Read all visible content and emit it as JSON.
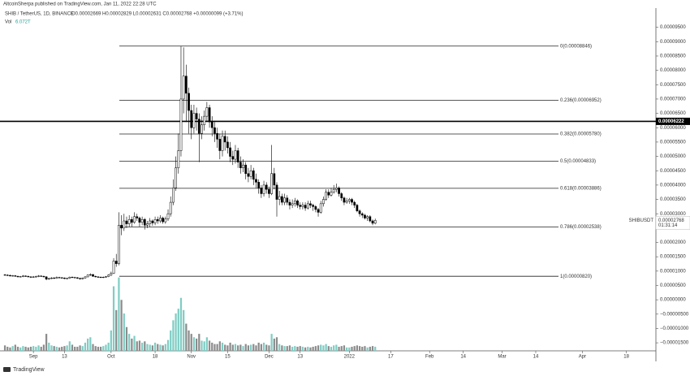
{
  "header": {
    "publisher": "AltcoinSherpa published on TradingView.com, Jan 11, 2022 22:28 UTC",
    "symbol": "SHIB / TetherUS, 1D, BINANCE",
    "ohlc": "O0.00002669 H0.00002829 L0.00002631 C0.00002768 +0.00000099 (+3.71%)",
    "volume_label": "Vol",
    "volume_value": "6.072T",
    "footer": "TradingView"
  },
  "chart_data": {
    "type": "candlestick",
    "open": [
      8.7e-06,
      8.6e-06,
      8.5e-06,
      8.3e-06,
      8.4e-06,
      8.2e-06,
      8e-06,
      8.1e-06,
      8.3e-06,
      8.2e-06,
      8e-06,
      7.9e-06,
      8e-06,
      8.1e-06,
      8.3e-06,
      8.2e-06,
      8e-06,
      7.2e-06,
      7.4e-06,
      7.6e-06,
      7.5e-06,
      7.8e-06,
      7.7e-06,
      7.6e-06,
      7.4e-06,
      7.5e-06,
      7.9e-06,
      7.8e-06,
      7.7e-06,
      7.5e-06,
      7.3e-06,
      7.6e-06,
      8e-06,
      8.6e-06,
      8.8e-06,
      8.2e-06,
      8e-06,
      7.9e-06,
      7.8e-06,
      7.9e-06,
      8.1e-06,
      8.6e-06,
      9.2e-06,
      1.35e-05,
      1.26e-05,
      2.6e-05,
      2.5e-05,
      2.75e-05,
      2.65e-05,
      2.8e-05,
      2.7e-05,
      2.9e-05,
      2.85e-05,
      2.7e-05,
      2.8e-05,
      2.6e-05,
      2.65e-05,
      2.75e-05,
      2.68e-05,
      2.8e-05,
      2.75e-05,
      2.85e-05,
      2.72e-05,
      2.82e-05,
      3e-05,
      3.4e-05,
      3.9e-05,
      4.6e-05,
      5.2e-05,
      7e-05,
      7.8e-05,
      7.2e-05,
      6.6e-05,
      6e-05,
      6.5e-05,
      6.3e-05,
      5.8e-05,
      6.1e-05,
      6.4e-05,
      6.7e-05,
      6.2e-05,
      6e-05,
      5.8e-05,
      5.6e-05,
      5.2e-05,
      5.7e-05,
      5.5e-05,
      5.3e-05,
      5e-05,
      4.9e-05,
      5.2e-05,
      4.8e-05,
      4.6e-05,
      4.7e-05,
      4.4e-05,
      4.3e-05,
      4.5e-05,
      4.2e-05,
      4.1e-05,
      3.9e-05,
      3.7e-05,
      4e-05,
      3.85e-05,
      3.7e-05,
      4.4e-05,
      4e-05,
      3.5e-05,
      3.6e-05,
      3.4e-05,
      3.55e-05,
      3.4e-05,
      3.3e-05,
      3.35e-05,
      3.45e-05,
      3.3e-05,
      3.25e-05,
      3.3e-05,
      3.2e-05,
      3.35e-05,
      3.3e-05,
      3.25e-05,
      3.15e-05,
      3.05e-05,
      3.35e-05,
      3.5e-05,
      3.75e-05,
      3.65e-05,
      3.75e-05,
      3.85e-05,
      3.9e-05,
      3.7e-05,
      3.55e-05,
      3.4e-05,
      3.45e-05,
      3.5e-05,
      3.4e-05,
      3.3e-05,
      3.1e-05,
      3e-05,
      2.95e-05,
      2.85e-05,
      2.9e-05,
      2.75e-05,
      2.669e-05
    ],
    "high": [
      9e-06,
      8.9e-06,
      8.8e-06,
      8.6e-06,
      8.6e-06,
      8.4e-06,
      8.3e-06,
      8.6e-06,
      8.5e-06,
      8.4e-06,
      8.2e-06,
      8.3e-06,
      8.4e-06,
      8.6e-06,
      8.5e-06,
      8.4e-06,
      8.2e-06,
      7.7e-06,
      7.9e-06,
      7.9e-06,
      8.1e-06,
      8e-06,
      7.9e-06,
      7.8e-06,
      7.7e-06,
      8.1e-06,
      8.1e-06,
      8e-06,
      7.9e-06,
      7.7e-06,
      7.8e-06,
      8.2e-06,
      8.9e-06,
      9.2e-06,
      9e-06,
      8.4e-06,
      8.2e-06,
      8.1e-06,
      8.1e-06,
      8.3e-06,
      8.9e-06,
      9.8e-06,
      1.45e-05,
      1.6e-05,
      3.05e-05,
      2.95e-05,
      3e-05,
      2.9e-05,
      2.95e-05,
      2.9e-05,
      3.05e-05,
      3e-05,
      2.9e-05,
      2.9e-05,
      2.85e-05,
      2.75e-05,
      2.85e-05,
      2.8e-05,
      2.9e-05,
      2.9e-05,
      2.95e-05,
      2.9e-05,
      2.9e-05,
      3.15e-05,
      3.6e-05,
      4.2e-05,
      5e-05,
      5.8e-05,
      8.846e-05,
      8.8e-05,
      8.2e-05,
      7.4e-05,
      6.8e-05,
      6.8e-05,
      6.7e-05,
      6.5e-05,
      6.4e-05,
      6.6e-05,
      6.9e-05,
      6.8e-05,
      6.4e-05,
      6.2e-05,
      6e-05,
      5.8e-05,
      5.9e-05,
      5.9e-05,
      5.7e-05,
      5.5e-05,
      5.2e-05,
      5.4e-05,
      5.3e-05,
      5e-05,
      4.9e-05,
      4.8e-05,
      4.6e-05,
      4.7e-05,
      4.6e-05,
      4.4e-05,
      4.2e-05,
      4e-05,
      4.15e-05,
      4.1e-05,
      3.95e-05,
      5.4e-05,
      4.6e-05,
      4.1e-05,
      3.8e-05,
      3.7e-05,
      3.7e-05,
      3.65e-05,
      3.5e-05,
      3.5e-05,
      3.55e-05,
      3.5e-05,
      3.4e-05,
      3.4e-05,
      3.4e-05,
      3.45e-05,
      3.45e-05,
      3.35e-05,
      3.3e-05,
      3.2e-05,
      3.45e-05,
      3.6e-05,
      3.85e-05,
      3.85e-05,
      3.9e-05,
      4e-05,
      4.05e-05,
      3.95e-05,
      3.75e-05,
      3.6e-05,
      3.55e-05,
      3.55e-05,
      3.55e-05,
      3.45e-05,
      3.35e-05,
      3.15e-05,
      3.05e-05,
      3e-05,
      2.95e-05,
      2.95e-05,
      2.8e-05,
      2.829e-05
    ],
    "low": [
      8.4e-06,
      8.3e-06,
      8.1e-06,
      8.1e-06,
      8e-06,
      7.8e-06,
      7.8e-06,
      7.9e-06,
      8e-06,
      7.8e-06,
      7.6e-06,
      7.7e-06,
      7.8e-06,
      7.9e-06,
      8e-06,
      7.8e-06,
      6.8e-06,
      7e-06,
      7.2e-06,
      7.3e-06,
      7.3e-06,
      7.5e-06,
      7.4e-06,
      7.2e-06,
      7.2e-06,
      7.3e-06,
      7.6e-06,
      7.5e-06,
      7.3e-06,
      7e-06,
      7.1e-06,
      7.4e-06,
      7.8e-06,
      8.3e-06,
      8e-06,
      7.8e-06,
      7.7e-06,
      7.6e-06,
      7.6e-06,
      7.7e-06,
      7.9e-06,
      8.2e-06,
      9e-06,
      1.15e-05,
      1.2e-05,
      2.25e-05,
      2.4e-05,
      2.5e-05,
      2.55e-05,
      2.55e-05,
      2.65e-05,
      2.75e-05,
      2.55e-05,
      2.6e-05,
      2.45e-05,
      2.5e-05,
      2.55e-05,
      2.58e-05,
      2.6e-05,
      2.65e-05,
      2.68e-05,
      2.65e-05,
      2.65e-05,
      2.75e-05,
      2.9e-05,
      3.3e-05,
      3.8e-05,
      4.4e-05,
      5e-05,
      6.5e-05,
      6.2e-05,
      5.8e-05,
      5.6e-05,
      5.8e-05,
      5.9e-05,
      4.8e-05,
      5.6e-05,
      5.9e-05,
      6.2e-05,
      6e-05,
      5.7e-05,
      5.5e-05,
      5.3e-05,
      4.9e-05,
      5e-05,
      5.2e-05,
      5.1e-05,
      4.8e-05,
      4.7e-05,
      4.75e-05,
      4.6e-05,
      4.4e-05,
      4.45e-05,
      4.2e-05,
      4.1e-05,
      4.2e-05,
      4e-05,
      3.9e-05,
      3.7e-05,
      3.55e-05,
      3.6e-05,
      3.7e-05,
      3.55e-05,
      3.65e-05,
      3.85e-05,
      2.9e-05,
      3.3e-05,
      3.3e-05,
      3.3e-05,
      3.3e-05,
      3.15e-05,
      3.2e-05,
      3.25e-05,
      3.2e-05,
      3.15e-05,
      3.15e-05,
      3.1e-05,
      3.15e-05,
      3.2e-05,
      3.1e-05,
      3.05e-05,
      2.9e-05,
      3e-05,
      3.25e-05,
      3.45e-05,
      3.55e-05,
      3.6e-05,
      3.7e-05,
      3.75e-05,
      3.6e-05,
      3.45e-05,
      3.3e-05,
      3.35e-05,
      3.35e-05,
      3.3e-05,
      3.2e-05,
      3.05e-05,
      2.9e-05,
      2.85e-05,
      2.8e-05,
      2.75e-05,
      2.7e-05,
      2.6e-05,
      2.631e-05
    ],
    "close": [
      8.6e-06,
      8.5e-06,
      8.3e-06,
      8.4e-06,
      8.2e-06,
      8e-06,
      8.1e-06,
      8.3e-06,
      8.2e-06,
      8e-06,
      7.9e-06,
      8e-06,
      8.1e-06,
      8.3e-06,
      8.2e-06,
      8e-06,
      7.2e-06,
      7.4e-06,
      7.6e-06,
      7.5e-06,
      7.8e-06,
      7.7e-06,
      7.6e-06,
      7.4e-06,
      7.5e-06,
      7.9e-06,
      7.8e-06,
      7.7e-06,
      7.5e-06,
      7.3e-06,
      7.6e-06,
      8e-06,
      8.6e-06,
      8.8e-06,
      8.2e-06,
      8e-06,
      7.9e-06,
      7.8e-06,
      7.9e-06,
      8.1e-06,
      8.6e-06,
      9.2e-06,
      1.35e-05,
      1.26e-05,
      2.6e-05,
      2.5e-05,
      2.75e-05,
      2.65e-05,
      2.8e-05,
      2.7e-05,
      2.9e-05,
      2.85e-05,
      2.7e-05,
      2.8e-05,
      2.6e-05,
      2.65e-05,
      2.75e-05,
      2.68e-05,
      2.8e-05,
      2.75e-05,
      2.85e-05,
      2.72e-05,
      2.82e-05,
      3e-05,
      3.4e-05,
      3.9e-05,
      4.6e-05,
      5.2e-05,
      7e-05,
      7.8e-05,
      7.2e-05,
      6.6e-05,
      6e-05,
      6.5e-05,
      6.3e-05,
      5.8e-05,
      6.1e-05,
      6.4e-05,
      6.7e-05,
      6.2e-05,
      6e-05,
      5.8e-05,
      5.6e-05,
      5.2e-05,
      5.7e-05,
      5.5e-05,
      5.3e-05,
      5e-05,
      4.9e-05,
      5.2e-05,
      4.8e-05,
      4.6e-05,
      4.7e-05,
      4.4e-05,
      4.3e-05,
      4.5e-05,
      4.2e-05,
      4.1e-05,
      3.9e-05,
      3.7e-05,
      4e-05,
      3.85e-05,
      3.7e-05,
      4.4e-05,
      4e-05,
      3.5e-05,
      3.6e-05,
      3.4e-05,
      3.55e-05,
      3.4e-05,
      3.3e-05,
      3.35e-05,
      3.45e-05,
      3.3e-05,
      3.25e-05,
      3.3e-05,
      3.2e-05,
      3.35e-05,
      3.3e-05,
      3.25e-05,
      3.15e-05,
      3.05e-05,
      3.35e-05,
      3.5e-05,
      3.75e-05,
      3.65e-05,
      3.75e-05,
      3.85e-05,
      3.9e-05,
      3.7e-05,
      3.55e-05,
      3.4e-05,
      3.45e-05,
      3.5e-05,
      3.4e-05,
      3.3e-05,
      3.1e-05,
      3e-05,
      2.95e-05,
      2.85e-05,
      2.9e-05,
      2.75e-05,
      2.669e-05,
      2.768e-05
    ],
    "volume": [
      8,
      6,
      5,
      7,
      9,
      6,
      5,
      7,
      6,
      5,
      6,
      7,
      6,
      8,
      6,
      9,
      25,
      12,
      8,
      7,
      6,
      5,
      6,
      7,
      8,
      14,
      9,
      6,
      6,
      8,
      7,
      12,
      18,
      20,
      10,
      7,
      6,
      6,
      7,
      9,
      12,
      30,
      95,
      60,
      108,
      75,
      55,
      35,
      25,
      18,
      22,
      14,
      15,
      12,
      14,
      10,
      9,
      8,
      12,
      10,
      9,
      8,
      10,
      16,
      30,
      45,
      55,
      62,
      78,
      60,
      40,
      30,
      25,
      20,
      18,
      25,
      15,
      14,
      20,
      15,
      12,
      10,
      10,
      14,
      12,
      9,
      8,
      12,
      9,
      10,
      8,
      9,
      7,
      10,
      8,
      9,
      10,
      8,
      12,
      10,
      12,
      9,
      8,
      25,
      18,
      20,
      10,
      8,
      7,
      7,
      8,
      6,
      7,
      6,
      7,
      6,
      5,
      6,
      5,
      6,
      7,
      8,
      9,
      8,
      10,
      7,
      6,
      8,
      9,
      6,
      7,
      8,
      5,
      5,
      6,
      7,
      8,
      7,
      6,
      7,
      5,
      6,
      7,
      6.072
    ],
    "volume_lim": [
      0,
      110
    ],
    "up_color": "#ffffff",
    "down_color": "#000000",
    "volume_up_color": "#7fcdc4",
    "volume_down_color": "#8c8c8c",
    "xlim": [
      -1.9,
      251.4
    ],
    "xticks": [
      {
        "value": 11,
        "label": "Sep"
      },
      {
        "value": 23,
        "label": "13"
      },
      {
        "value": 41,
        "label": "Oct"
      },
      {
        "value": 58,
        "label": "18"
      },
      {
        "value": 72,
        "label": "Nov"
      },
      {
        "value": 86,
        "label": "15"
      },
      {
        "value": 102,
        "label": "Dec"
      },
      {
        "value": 114,
        "label": "13"
      },
      {
        "value": 133,
        "label": "2022"
      },
      {
        "value": 149,
        "label": "17"
      },
      {
        "value": 164,
        "label": "Feb"
      },
      {
        "value": 177,
        "label": "14"
      },
      {
        "value": 192,
        "label": "Mar"
      },
      {
        "value": 205,
        "label": "14"
      },
      {
        "value": 223,
        "label": "Apr"
      },
      {
        "value": 240,
        "label": "18"
      }
    ],
    "ylim": [
      -1.78e-05,
      0.0001017
    ],
    "yticks": [
      {
        "value": 9.5e-05,
        "label": "0.00009500"
      },
      {
        "value": 9e-05,
        "label": "0.00009000"
      },
      {
        "value": 8.5e-05,
        "label": "0.00008500"
      },
      {
        "value": 8e-05,
        "label": "0.00008000"
      },
      {
        "value": 7.5e-05,
        "label": "0.00007500"
      },
      {
        "value": 7e-05,
        "label": "0.00007000"
      },
      {
        "value": 6.5e-05,
        "label": "0.00006500"
      },
      {
        "value": 6e-05,
        "label": "0.00006000"
      },
      {
        "value": 5.5e-05,
        "label": "0.00005500"
      },
      {
        "value": 5e-05,
        "label": "0.00005000"
      },
      {
        "value": 4.5e-05,
        "label": "0.00004500"
      },
      {
        "value": 4e-05,
        "label": "0.00004000"
      },
      {
        "value": 3.5e-05,
        "label": "0.00003500"
      },
      {
        "value": 3e-05,
        "label": "0.00003000"
      },
      {
        "value": 2e-05,
        "label": "0.00002000"
      },
      {
        "value": 1.5e-05,
        "label": "0.00001500"
      },
      {
        "value": 1e-05,
        "label": "0.00001000"
      },
      {
        "value": 5e-06,
        "label": "0.00000500"
      },
      {
        "value": 0,
        "label": "0.00000000"
      },
      {
        "value": -5e-06,
        "label": "−0.00000500"
      },
      {
        "value": -1e-05,
        "label": "−0.00001000"
      },
      {
        "value": -1.5e-05,
        "label": "−0.00001500"
      }
    ],
    "fib_levels": [
      {
        "value": 8.846e-05,
        "label": "0(0.00008846)"
      },
      {
        "value": 6.952e-05,
        "label": "0.236(0.00006952)"
      },
      {
        "value": 5.78e-05,
        "label": "0.382(0.00005780)"
      },
      {
        "value": 4.833e-05,
        "label": "0.5(0.00004833)"
      },
      {
        "value": 3.886e-05,
        "label": "0.618(0.00003886)"
      },
      {
        "value": 2.538e-05,
        "label": "0.786(0.00002538)"
      },
      {
        "value": 8.2e-06,
        "label": "1(0.00000820)"
      }
    ],
    "price_line": {
      "value": 6.222e-05,
      "label": "0.00006222"
    },
    "last_price": {
      "value": 2.768e-05,
      "label": "0.00002768",
      "symbol": "SHIBUSDT",
      "countdown": "01:31:14"
    }
  }
}
